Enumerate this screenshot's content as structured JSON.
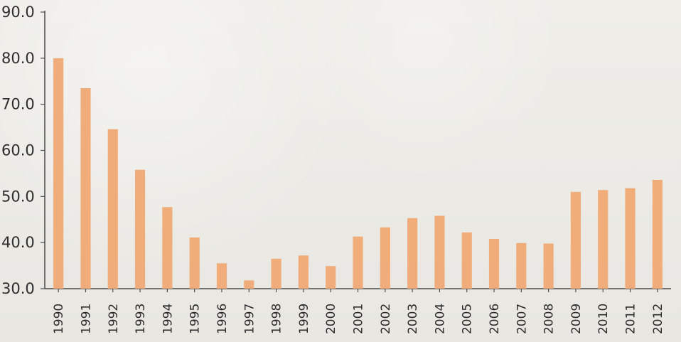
{
  "chart_data": {
    "type": "bar",
    "title": "",
    "xlabel": "",
    "ylabel": "",
    "categories": [
      "1990",
      "1991",
      "1992",
      "1993",
      "1994",
      "1995",
      "1996",
      "1997",
      "1998",
      "1999",
      "2000",
      "2001",
      "2002",
      "2003",
      "2004",
      "2005",
      "2006",
      "2007",
      "2008",
      "2009",
      "2010",
      "2011",
      "2012"
    ],
    "values": [
      80.0,
      73.5,
      64.6,
      55.8,
      47.7,
      41.1,
      35.5,
      31.8,
      36.5,
      37.2,
      34.9,
      41.3,
      43.3,
      45.3,
      45.8,
      42.2,
      40.8,
      39.9,
      39.8,
      51.0,
      51.4,
      51.8,
      53.6
    ],
    "ylim": [
      30.0,
      90.0
    ],
    "y_ticks": [
      "30.0",
      "40.0",
      "50.0",
      "60.0",
      "70.0",
      "80.0",
      "90.0"
    ],
    "grid": false,
    "bar_color": "#efaa76"
  }
}
